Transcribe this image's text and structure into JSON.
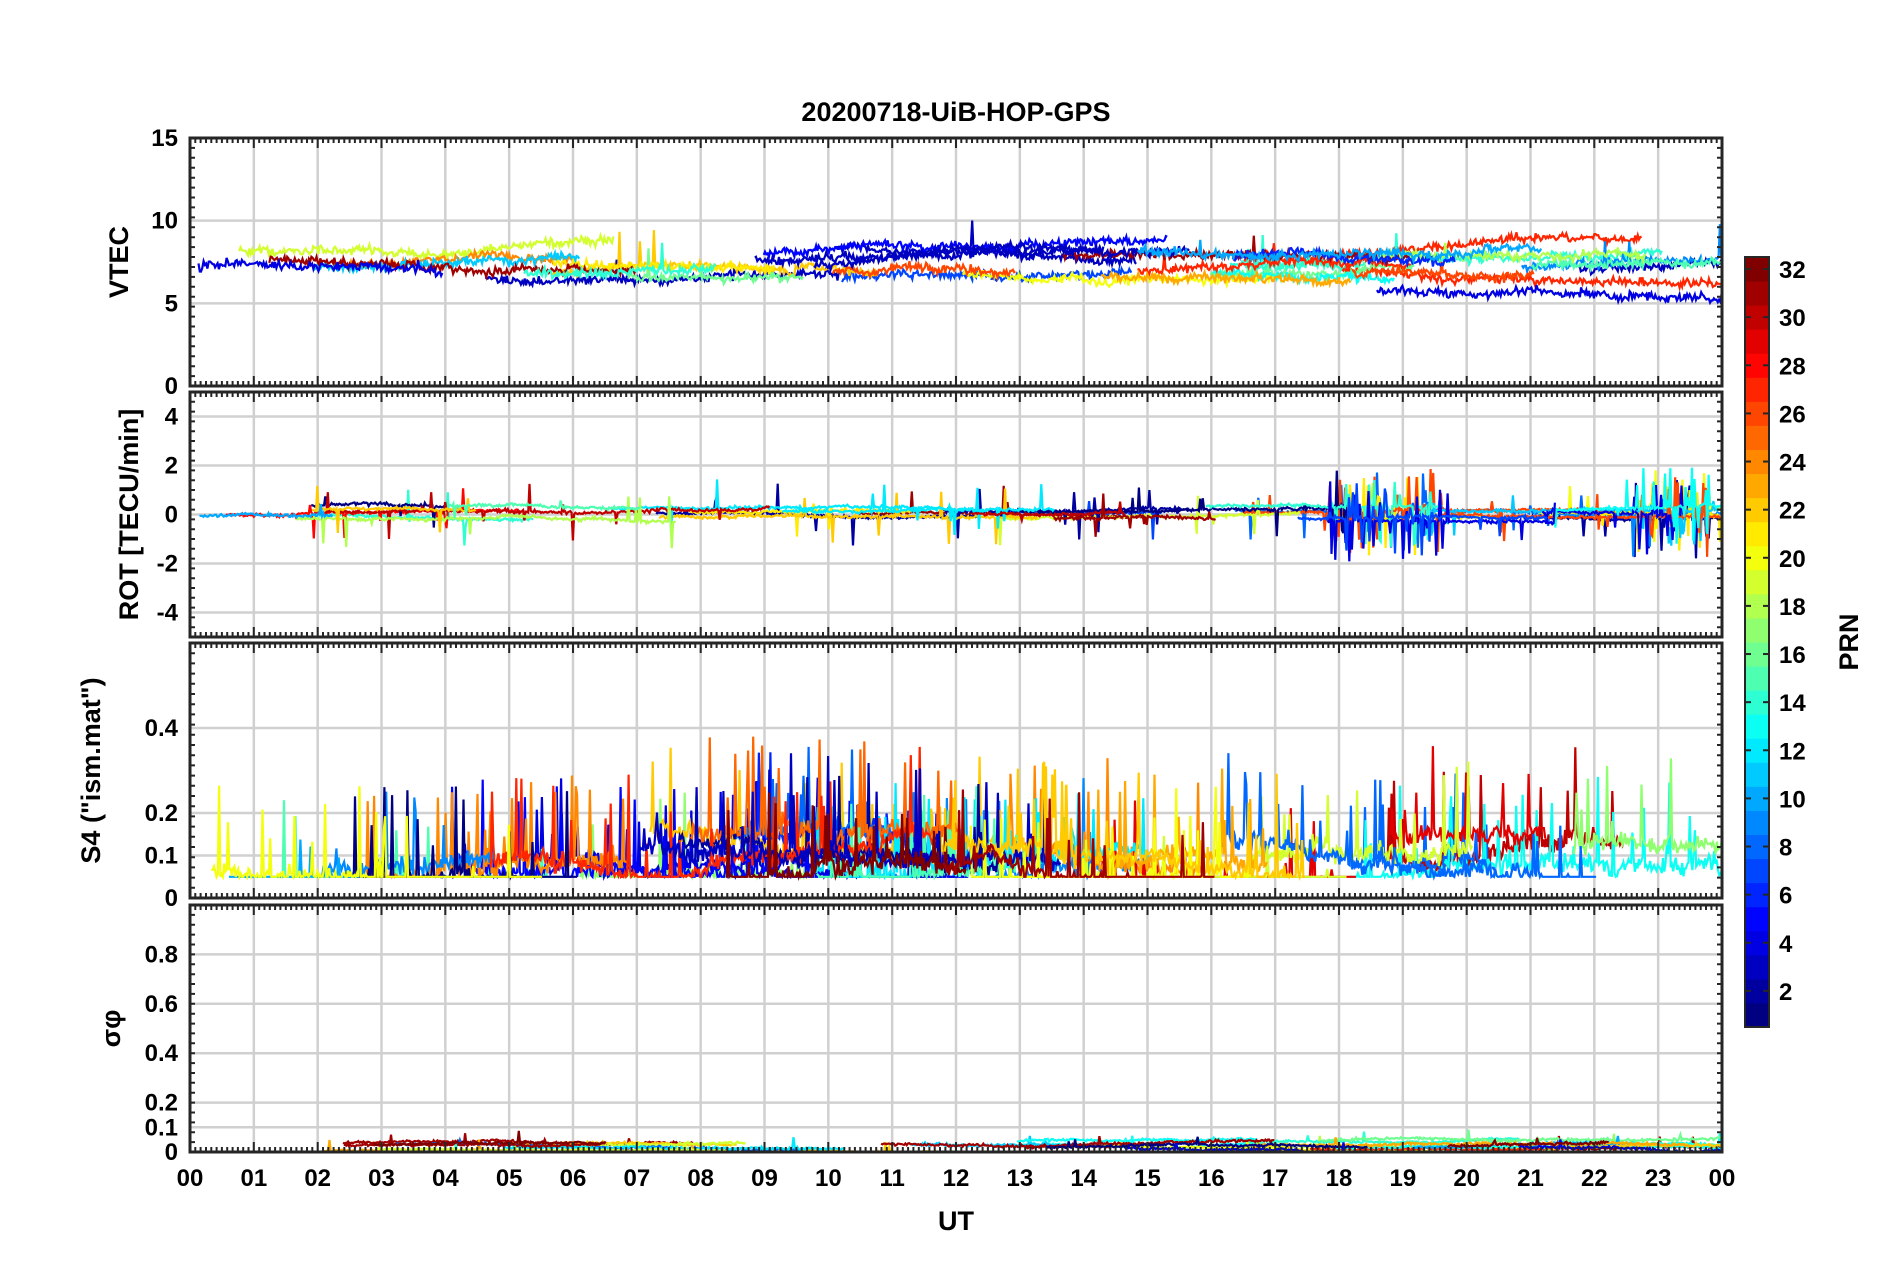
{
  "chart_data": {
    "type": "line",
    "title": "20200718-UiB-HOP-GPS",
    "xlabel": "UT",
    "x_ticks": [
      "00",
      "01",
      "02",
      "03",
      "04",
      "05",
      "06",
      "07",
      "08",
      "09",
      "10",
      "11",
      "12",
      "13",
      "14",
      "15",
      "16",
      "17",
      "18",
      "19",
      "20",
      "21",
      "22",
      "23",
      "00"
    ],
    "xlim_hours": [
      0,
      24
    ],
    "colorbar": {
      "label": "PRN",
      "range": [
        1,
        32
      ],
      "ticks": [
        "2",
        "4",
        "6",
        "8",
        "10",
        "12",
        "14",
        "16",
        "18",
        "20",
        "22",
        "24",
        "26",
        "28",
        "30",
        "32"
      ]
    },
    "panels": [
      {
        "name": "vtec",
        "ylabel": "VTEC",
        "ylim": [
          0,
          15
        ],
        "y_ticks": [
          0,
          5,
          10,
          15
        ],
        "y_tick_labels": [
          "0",
          "5",
          "10",
          "15"
        ],
        "baseline": 7.3,
        "noise": 0.6,
        "spike_rate": 0.004,
        "spike_amp": 2.0,
        "clip": [
          2.5,
          12
        ]
      },
      {
        "name": "rot",
        "ylabel": "ROT [TECU/min]",
        "ylim": [
          -5,
          5
        ],
        "y_ticks": [
          -4,
          -2,
          0,
          2,
          4
        ],
        "y_tick_labels": [
          "-4",
          "-2",
          "0",
          "2",
          "4"
        ],
        "baseline": 0.05,
        "noise": 0.15,
        "spike_rate": 0.03,
        "spike_amp": 1.2,
        "active_periods": [
          [
            17.8,
            19.6
          ],
          [
            22.6,
            23.8
          ]
        ],
        "clip": [
          -2.4,
          2.4
        ]
      },
      {
        "name": "s4",
        "ylabel": "S4 (\"ism.mat\")",
        "ylim": [
          0,
          0.6
        ],
        "y_ticks": [
          0,
          0.1,
          0.2,
          0.4
        ],
        "y_tick_labels": [
          "0",
          "0.1",
          "0.2",
          "0.4"
        ],
        "baseline": 0.09,
        "noise": 0.05,
        "spike_rate": 0.08,
        "spike_amp": 0.22,
        "clip": [
          0.05,
          0.6
        ]
      },
      {
        "name": "sigma_phi",
        "ylabel": "σφ",
        "ylim": [
          0,
          1
        ],
        "y_ticks": [
          0,
          0.1,
          0.2,
          0.4,
          0.6,
          0.8
        ],
        "y_tick_labels": [
          "0",
          "0.1",
          "0.2",
          "0.4",
          "0.6",
          "0.8"
        ],
        "baseline": 0.025,
        "noise": 0.012,
        "spike_rate": 0.01,
        "spike_amp": 0.05,
        "clip": [
          0.0,
          0.28
        ]
      }
    ]
  }
}
